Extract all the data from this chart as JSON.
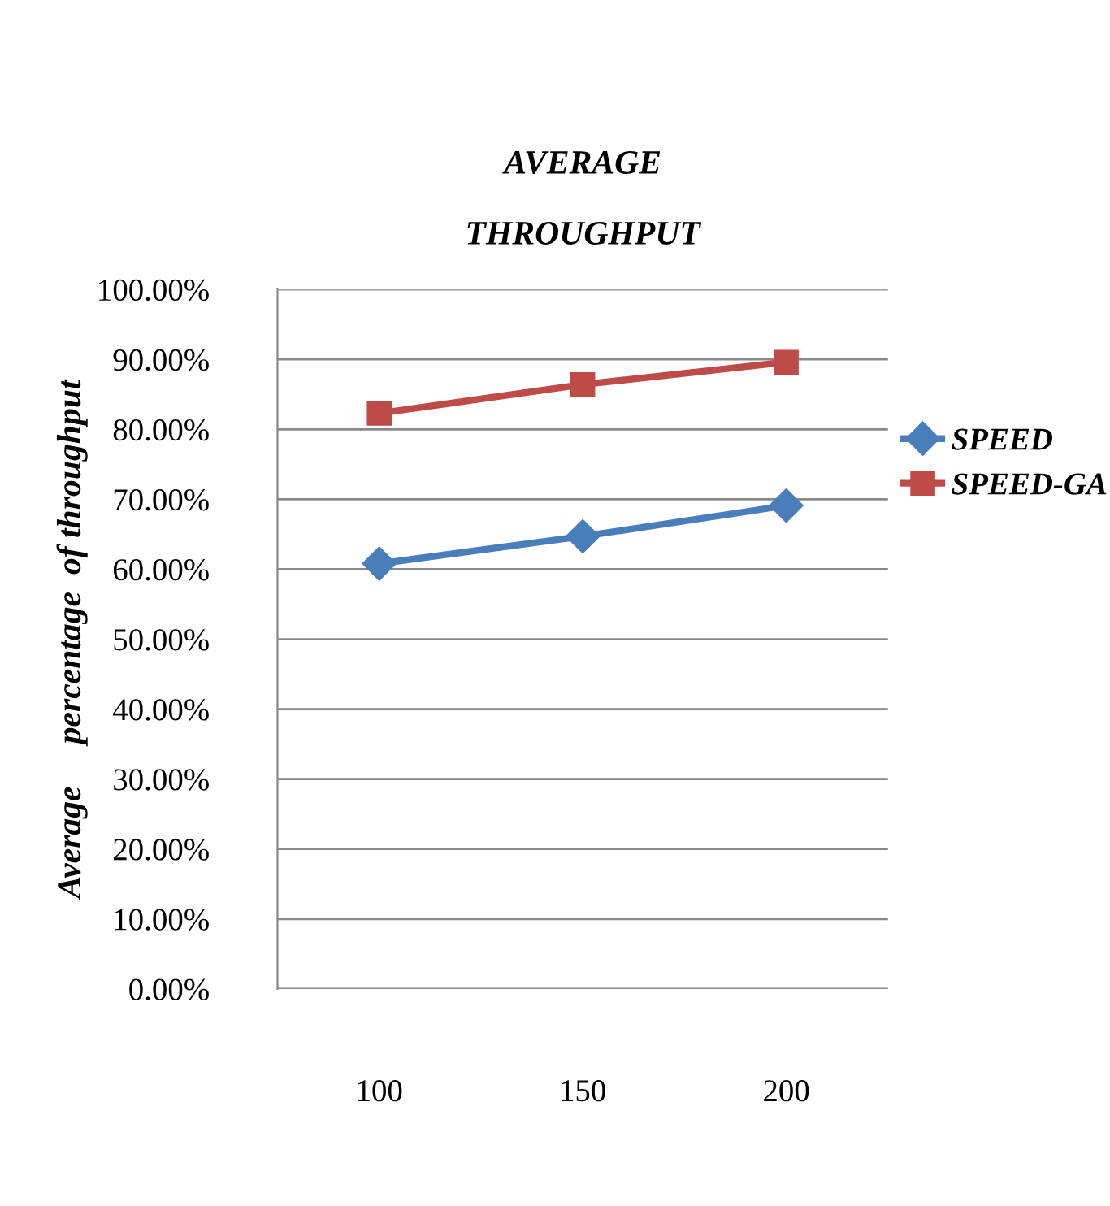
{
  "chart_data": {
    "type": "line",
    "title": "AVERAGE\n\nTHROUGHPUT",
    "ylabel": "Average     percentage  of throughput",
    "categories": [
      "100",
      "150",
      "200"
    ],
    "series": [
      {
        "name": "SPEED",
        "color": "#4a7ebb",
        "marker": "diamond",
        "values": [
          60.8,
          64.7,
          69.1
        ]
      },
      {
        "name": "SPEED-GA",
        "color": "#be4b48",
        "marker": "square",
        "values": [
          82.3,
          86.4,
          89.6
        ]
      }
    ],
    "ylim": [
      0,
      100
    ],
    "yticks": [
      {
        "value": 0,
        "label": "0.00%"
      },
      {
        "value": 10,
        "label": "10.00%"
      },
      {
        "value": 20,
        "label": "20.00%"
      },
      {
        "value": 30,
        "label": "30.00%"
      },
      {
        "value": 40,
        "label": "40.00%"
      },
      {
        "value": 50,
        "label": "50.00%"
      },
      {
        "value": 60,
        "label": "60.00%"
      },
      {
        "value": 70,
        "label": "70.00%"
      },
      {
        "value": 80,
        "label": "80.00%"
      },
      {
        "value": 90,
        "label": "90.00%"
      },
      {
        "value": 100,
        "label": "100.00%"
      }
    ],
    "grid": "y",
    "legend": "right",
    "line_style": "solid"
  }
}
